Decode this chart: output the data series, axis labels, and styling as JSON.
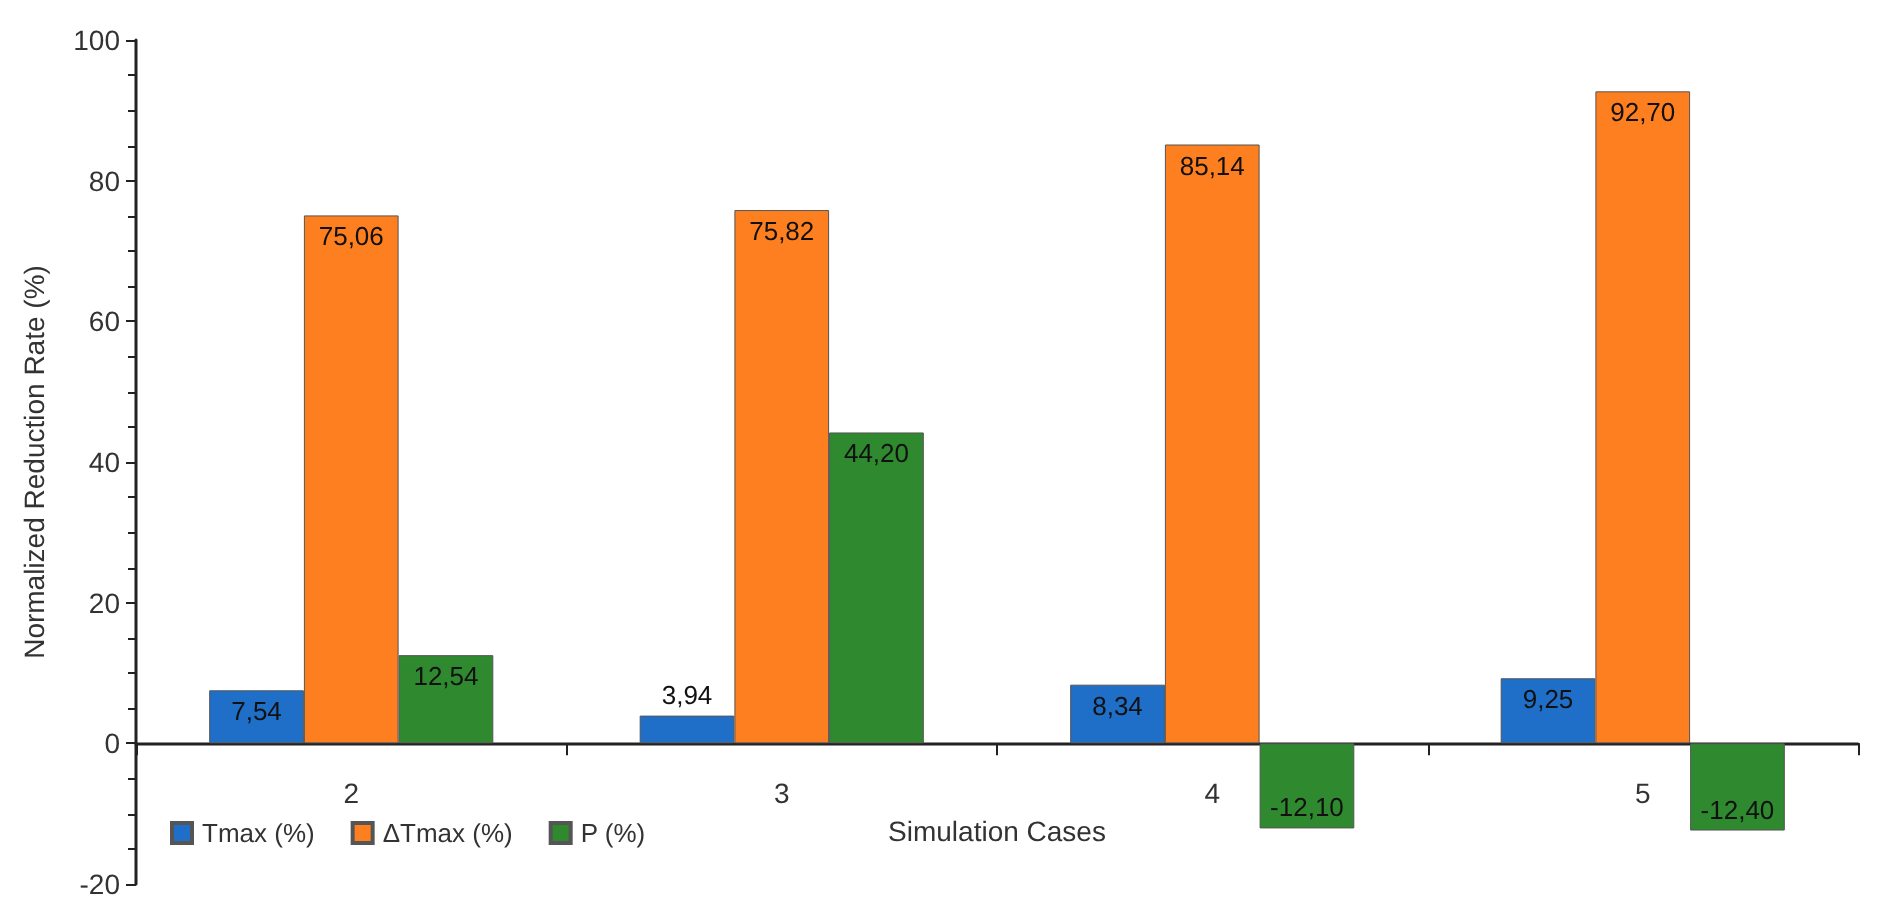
{
  "chart_data": {
    "type": "bar",
    "ylabel": "Normalized Reduction Rate (%)",
    "xlabel": "Simulation Cases",
    "categories": [
      "2",
      "3",
      "4",
      "5"
    ],
    "series": [
      {
        "name": "Tmax (%)",
        "color": "#1f6fc8",
        "values": [
          7.54,
          3.94,
          8.34,
          9.25
        ],
        "value_labels": [
          "7,54",
          "3,94",
          "8,34",
          "9,25"
        ]
      },
      {
        "name": "ΔTmax (%)",
        "color": "#fd7f1f",
        "values": [
          75.06,
          75.82,
          85.14,
          92.7
        ],
        "value_labels": [
          "75,06",
          "75,82",
          "85,14",
          "92,70"
        ]
      },
      {
        "name": "P (%)",
        "color": "#2f8a2f",
        "values": [
          12.54,
          44.2,
          -12.1,
          -12.4
        ],
        "value_labels": [
          "12,54",
          "44,20",
          "-12,10",
          "-12,40"
        ]
      }
    ],
    "ylim": [
      -20,
      100
    ],
    "yticks": [
      -20,
      0,
      20,
      40,
      60,
      80,
      100
    ],
    "grid": false,
    "legend": "bottom left"
  }
}
